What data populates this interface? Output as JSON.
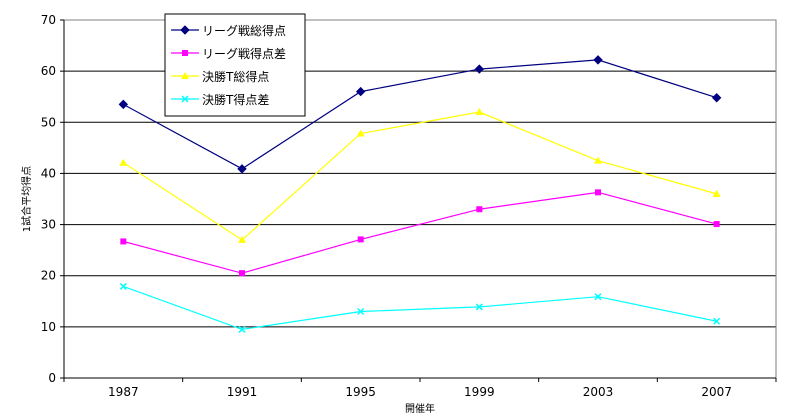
{
  "chart_data": {
    "type": "line",
    "title": "",
    "xlabel": "開催年",
    "ylabel": "1試合平均得点",
    "categories": [
      "1987",
      "1991",
      "1995",
      "1999",
      "2003",
      "2007"
    ],
    "ylim": [
      0,
      70
    ],
    "yticks": [
      0,
      10,
      20,
      30,
      40,
      50,
      60,
      70
    ],
    "grid": "horizontal",
    "legend_position": "top-left",
    "series": [
      {
        "name": "リーグ戦総得点",
        "color": "#000080",
        "marker": "diamond",
        "values": [
          53.5,
          40.9,
          56.0,
          60.4,
          62.2,
          54.8
        ]
      },
      {
        "name": "リーグ戦得点差",
        "color": "#ff00ff",
        "marker": "square",
        "values": [
          26.7,
          20.5,
          27.1,
          33.0,
          36.3,
          30.1
        ]
      },
      {
        "name": "決勝T総得点",
        "color": "#ffff00",
        "marker": "triangle",
        "values": [
          42.1,
          27.0,
          47.8,
          52.0,
          42.5,
          36.0
        ]
      },
      {
        "name": "決勝T得点差",
        "color": "#00ffff",
        "marker": "x",
        "values": [
          17.9,
          9.5,
          13.0,
          13.9,
          15.9,
          11.1
        ]
      }
    ]
  }
}
